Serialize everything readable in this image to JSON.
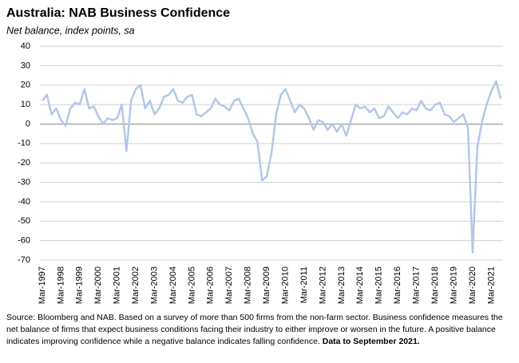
{
  "chart_data": {
    "type": "line",
    "title": "Australia: NAB Business Confidence",
    "subtitle": "Net balance, index points, sa",
    "source": "Source: Bloomberg and NAB. Based on a survey of more than 500 firms from the non-farm sector.  Business confidence measures the net balance of firms that expect business conditions facing their industry to either improve or worsen in the future.  A positive balance indicates improving confidence while a negative balance indicates falling confidence.",
    "source_note": "Data to September 2021.",
    "categories": [
      "Mar-1997",
      null,
      null,
      null,
      "Mar-1998",
      null,
      null,
      null,
      "Mar-1999",
      null,
      null,
      null,
      "Mar-2000",
      null,
      null,
      null,
      "Mar-2001",
      null,
      null,
      null,
      "Mar-2002",
      null,
      null,
      null,
      "Mar-2003",
      null,
      null,
      null,
      "Mar-2004",
      null,
      null,
      null,
      "Mar-2005",
      null,
      null,
      null,
      "Mar-2006",
      null,
      null,
      null,
      "Mar-2007",
      null,
      null,
      null,
      "Mar-2008",
      null,
      null,
      null,
      "Mar-2009",
      null,
      null,
      null,
      "Mar-2010",
      null,
      null,
      null,
      "Mar-2011",
      null,
      null,
      null,
      "Mar-2012",
      null,
      null,
      null,
      "Mar-2013",
      null,
      null,
      null,
      "Mar-2014",
      null,
      null,
      null,
      "Mar-2015",
      null,
      null,
      null,
      "Mar-2016",
      null,
      null,
      null,
      "Mar-2017",
      null,
      null,
      null,
      "Mar-2018",
      null,
      null,
      null,
      "Mar-2019",
      null,
      null,
      null,
      "Mar-2020",
      null,
      null,
      null,
      "Mar-2021",
      null,
      null
    ],
    "series": [
      {
        "name": "NAB Business Confidence",
        "color": "#b4c7e7",
        "values": [
          12,
          15,
          5,
          8,
          2,
          -1,
          8,
          11,
          10,
          18,
          8,
          9,
          4,
          0,
          3,
          2,
          3,
          10,
          -14,
          12,
          18,
          20,
          8,
          12,
          5,
          8,
          14,
          15,
          18,
          12,
          11,
          14,
          15,
          5,
          4,
          6,
          8,
          13,
          10,
          9,
          7,
          12,
          13,
          8,
          3,
          -5,
          -9,
          -29,
          -27,
          -15,
          5,
          15,
          18,
          12,
          6,
          10,
          8,
          3,
          -3,
          2,
          1,
          -3,
          0,
          -4,
          0,
          -6,
          2,
          10,
          8,
          9,
          6,
          8,
          3,
          4,
          9,
          6,
          3,
          6,
          5,
          8,
          7,
          12,
          8,
          7,
          10,
          11,
          5,
          4,
          1,
          3,
          5,
          -2,
          -66,
          -12,
          1,
          10,
          17,
          22,
          13
        ]
      }
    ],
    "ylim": [
      -70,
      40
    ],
    "yticks": [
      40,
      30,
      20,
      10,
      0,
      -10,
      -20,
      -30,
      -40,
      -50,
      -60,
      -70
    ],
    "grid": true
  }
}
